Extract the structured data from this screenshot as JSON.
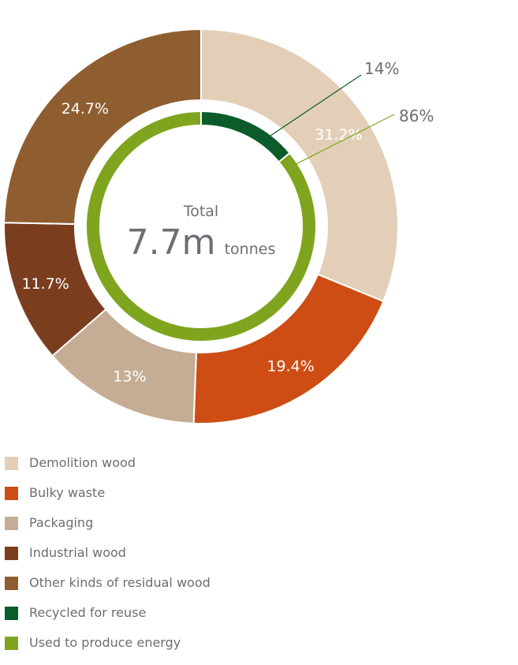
{
  "chart_data": [
    {
      "type": "pie",
      "donut": true,
      "center_label": {
        "title": "Total",
        "value": "7.7m",
        "unit": "tonnes"
      },
      "categories": [
        "Demolition wood",
        "Bulky waste",
        "Packaging",
        "Industrial wood",
        "Other kinds of residual wood"
      ],
      "values": [
        31.2,
        19.4,
        13,
        11.7,
        24.7
      ],
      "labels": [
        "31.2%",
        "19.4%",
        "13%",
        "11.7%",
        "24.7%"
      ],
      "colors": [
        "#e3cfb8",
        "#cd4d14",
        "#c4ad94",
        "#7a3e1f",
        "#8f5e30"
      ],
      "legend": "bottom"
    },
    {
      "type": "pie",
      "donut": true,
      "categories": [
        "Recycled for reuse",
        "Used to produce energy"
      ],
      "values": [
        14,
        86
      ],
      "labels": [
        "14%",
        "86%"
      ],
      "colors": [
        "#0b5c2a",
        "#7fa51f"
      ],
      "legend": "bottom"
    }
  ]
}
